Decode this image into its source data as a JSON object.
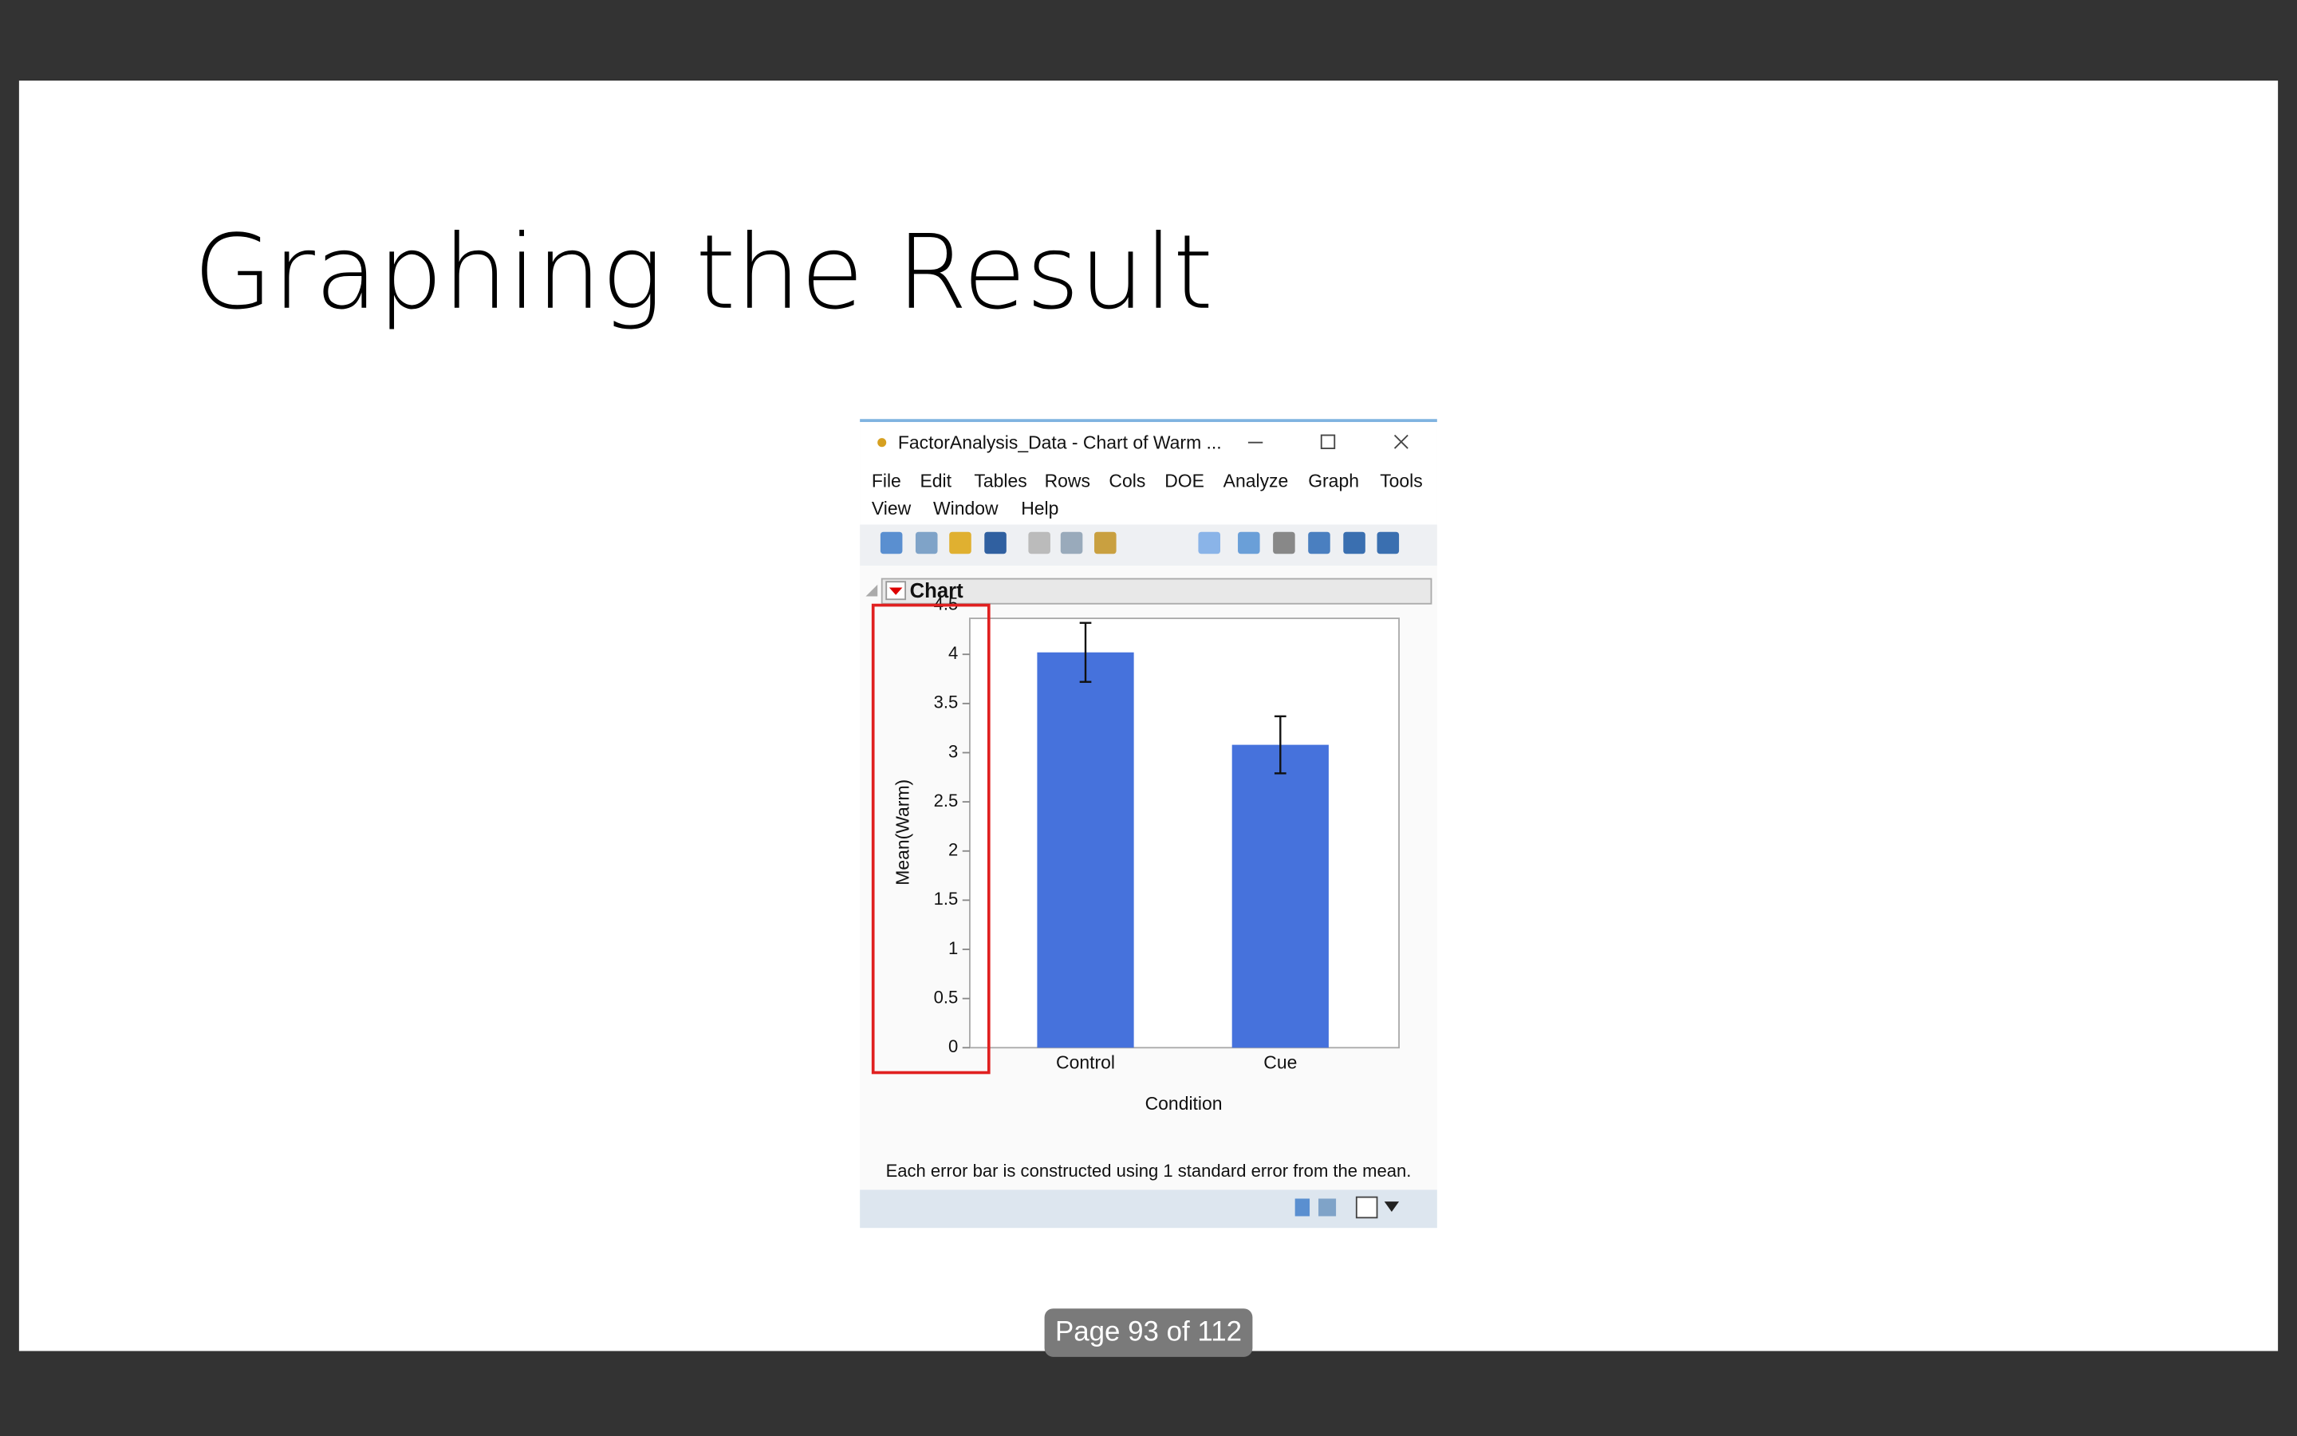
{
  "slide": {
    "title": "Graphing the Result",
    "page": "Page 93 of 112"
  },
  "window": {
    "title": "FactorAnalysis_Data - Chart of Warm ...",
    "menu": [
      "File",
      "Edit",
      "Tables",
      "Rows",
      "Cols",
      "DOE",
      "Analyze",
      "Graph",
      "Tools",
      "View",
      "Window",
      "Help"
    ],
    "section": "Chart"
  },
  "chart_data": {
    "type": "bar",
    "categories": [
      "Control",
      "Cue"
    ],
    "values": [
      4.02,
      3.08
    ],
    "errors": [
      0.3,
      0.29
    ],
    "color": "#4672dc",
    "ylim": [
      0,
      4.5
    ],
    "yticks": [
      0,
      0.5,
      1,
      1.5,
      2,
      2.5,
      3,
      3.5,
      4,
      4.5
    ],
    "x_label": "Condition",
    "y_label": "Mean(Warm)",
    "note": "Each error bar is constructed using 1 standard error from the mean."
  }
}
